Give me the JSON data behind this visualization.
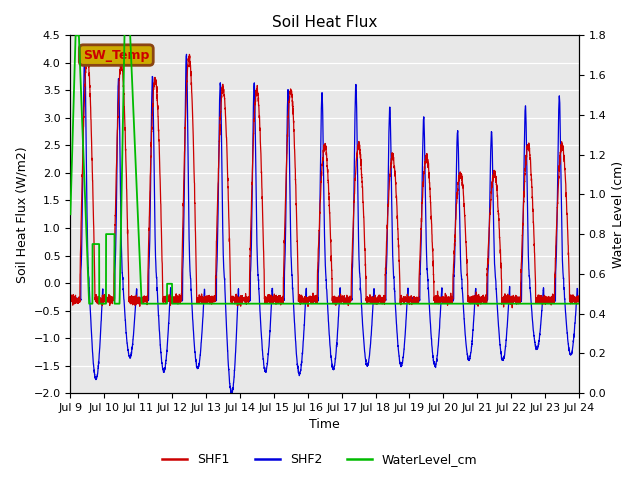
{
  "title": "Soil Heat Flux",
  "xlabel": "Time",
  "ylabel_left": "Soil Heat Flux (W/m2)",
  "ylabel_right": "Water Level (cm)",
  "ylim_left": [
    -2.0,
    4.5
  ],
  "ylim_right": [
    0.0,
    1.8
  ],
  "xtick_labels": [
    "Jul 9",
    "Jul 10",
    "Jul 11",
    "Jul 12",
    "Jul 13",
    "Jul 14",
    "Jul 15",
    "Jul 16",
    "Jul 17",
    "Jul 18",
    "Jul 19",
    "Jul 20",
    "Jul 21",
    "Jul 22",
    "Jul 23",
    "Jul 24"
  ],
  "color_shf1": "#cc0000",
  "color_shf2": "#0000dd",
  "color_water": "#00bb00",
  "color_bg": "#e8e8e8",
  "annotation_text": "SW_Temp",
  "annotation_box_bg": "#ccaa00",
  "annotation_box_edge": "#8B4513",
  "annotation_text_color": "#cc0000",
  "legend_labels": [
    "SHF1",
    "SHF2",
    "WaterLevel_cm"
  ],
  "shf1_peak_amps": [
    4.1,
    4.0,
    3.7,
    4.1,
    3.55,
    3.5,
    3.5,
    2.5,
    2.5,
    2.3,
    2.3,
    2.0,
    2.0,
    2.5,
    2.5
  ],
  "shf2_peak_amps": [
    4.15,
    3.7,
    3.75,
    4.15,
    3.65,
    3.65,
    3.5,
    3.45,
    3.6,
    3.2,
    3.0,
    2.75,
    2.75,
    3.2,
    3.4
  ],
  "shf2_trough_depths": [
    -1.75,
    -1.35,
    -1.6,
    -1.55,
    -2.0,
    -1.6,
    -1.65,
    -1.55,
    -1.5,
    -1.5,
    -1.5,
    -1.4,
    -1.4,
    -1.2,
    -1.3
  ],
  "water_baseline": 0.45,
  "n_days": 15,
  "pts_per_day": 288
}
